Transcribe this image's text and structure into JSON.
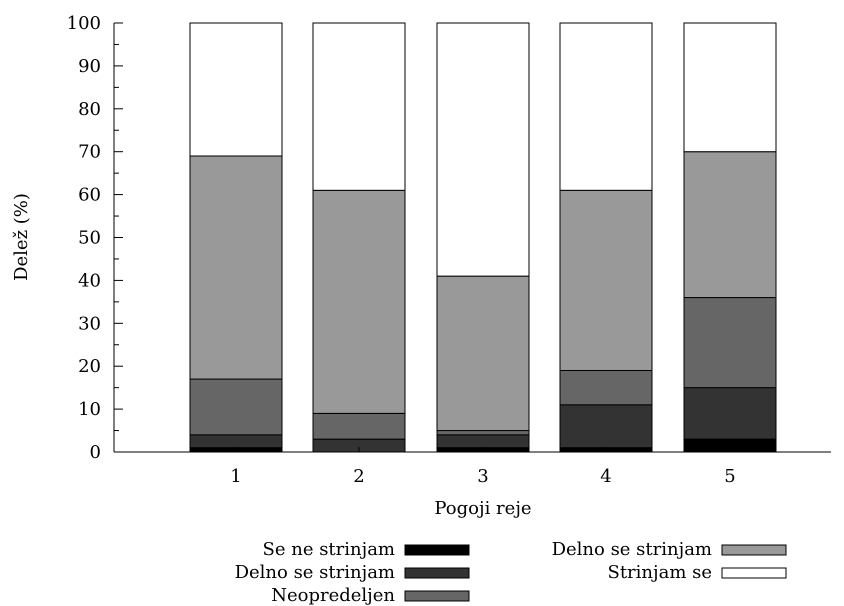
{
  "chart_data": {
    "type": "bar",
    "stacked": true,
    "title": "",
    "xlabel": "Pogoji reje",
    "ylabel": "Delež (%)",
    "ylim": [
      0,
      100
    ],
    "yticks": [
      0,
      10,
      20,
      30,
      40,
      50,
      60,
      70,
      80,
      90,
      100
    ],
    "categories": [
      "1",
      "2",
      "3",
      "4",
      "5"
    ],
    "grid": false,
    "legend_position": "bottom",
    "series": [
      {
        "name": "Se ne strinjam",
        "color": "#000000",
        "values": [
          1,
          0,
          1,
          1,
          3
        ]
      },
      {
        "name": "Delno se strinjam",
        "color": "#333333",
        "values": [
          3,
          3,
          3,
          10,
          12
        ]
      },
      {
        "name": "Neopredeljen",
        "color": "#666666",
        "values": [
          13,
          6,
          1,
          8,
          21
        ]
      },
      {
        "name": "Delno se strinjam",
        "color": "#999999",
        "values": [
          52,
          52,
          36,
          42,
          34
        ]
      },
      {
        "name": "Strinjam se",
        "color": "#ffffff",
        "values": [
          31,
          39,
          59,
          39,
          30
        ]
      }
    ]
  }
}
